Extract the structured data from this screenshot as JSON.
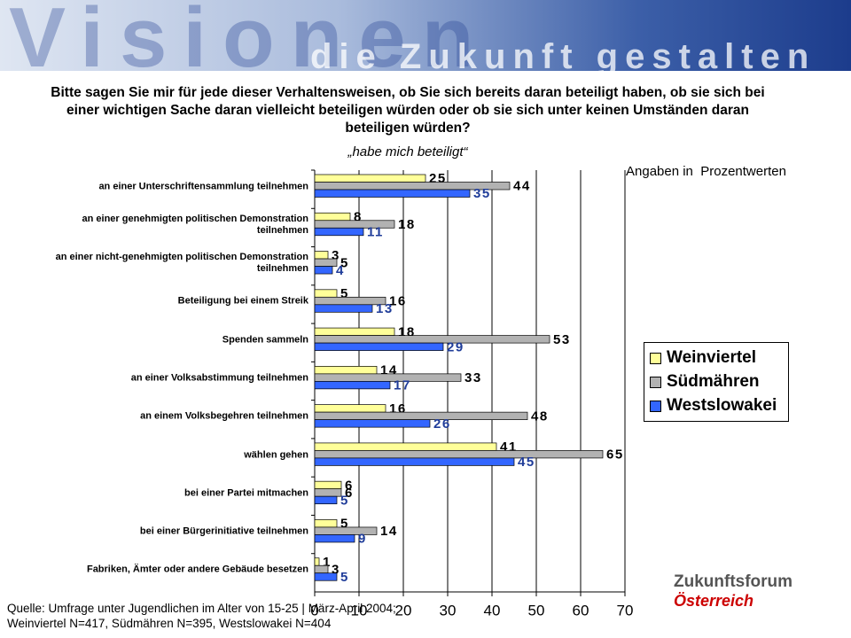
{
  "banner": {
    "title": "Visionen",
    "subtitle": "die Zukunft gestalten"
  },
  "logo": {
    "line1": "Zukunftsforum",
    "line2": "Österreich"
  },
  "chart_data": {
    "type": "bar",
    "orientation": "horizontal",
    "title": "Bitte sagen Sie mir für jede dieser Verhaltensweisen, ob Sie sich bereits daran beteiligt haben, ob sie sich bei einer wichtigen Sache daran vielleicht beteiligen würden oder ob sie sich unter keinen Umständen daran beteiligen würden?",
    "subtitle": "„habe mich beteiligt“",
    "annotation": "Angaben in  Prozentwerten",
    "categories": [
      "an einer Unterschriftensammlung teilnehmen",
      "an einer genehmigten politischen Demonstration teilnehmen",
      "an einer nicht-genehmigten politischen Demonstration teilnehmen",
      "Beteiligung bei einem Streik",
      "Spenden sammeln",
      "an einer Volksabstimmung teilnehmen",
      "an einem Volksbegehren teilnehmen",
      "wählen gehen",
      "bei einer Partei mitmachen",
      "bei einer Bürgerinitiative teilnehmen",
      "Fabriken, Ämter oder andere Gebäude besetzen"
    ],
    "series": [
      {
        "name": "Weinviertel",
        "color": "#ffff99",
        "values": [
          25,
          8,
          3,
          5,
          18,
          14,
          16,
          41,
          6,
          5,
          1
        ]
      },
      {
        "name": "Südmähren",
        "color": "#b2b2b2",
        "values": [
          44,
          18,
          5,
          16,
          53,
          33,
          48,
          65,
          6,
          14,
          3
        ]
      },
      {
        "name": "Westslowakei",
        "color": "#3366ff",
        "values": [
          35,
          11,
          4,
          13,
          29,
          17,
          26,
          45,
          5,
          9,
          5
        ]
      }
    ],
    "xlim": [
      0,
      70
    ],
    "xticks": [
      0,
      10,
      20,
      30,
      40,
      50,
      60,
      70
    ],
    "grid": true,
    "legend": "right",
    "source": [
      "Quelle: Umfrage unter Jugendlichen im Alter von 15-25 | März-April 2004;",
      "Weinviertel N=417, Südmähren N=395, Westslowakei N=404"
    ]
  }
}
